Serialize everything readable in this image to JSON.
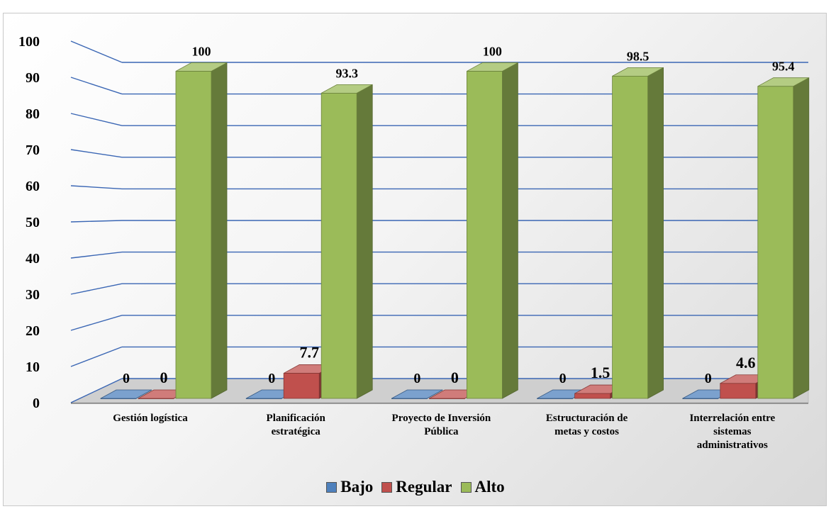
{
  "chart_data": {
    "type": "bar",
    "style": "3d-clustered-column",
    "categories": [
      "Gestión logística",
      "Planificación estratégica",
      "Proyecto de Inversión Pública",
      "Estructuración de metas y costos",
      "Interrelación entre sistemas administrativos"
    ],
    "series": [
      {
        "name": "Bajo",
        "values": [
          0,
          0,
          0,
          0,
          0
        ],
        "labels": [
          "0",
          "0",
          "0",
          "0",
          "0"
        ],
        "color": "#4f81bd"
      },
      {
        "name": "Regular",
        "values": [
          0,
          7.7,
          0,
          1.5,
          4.6
        ],
        "labels": [
          "0",
          "7.7",
          "0",
          "1.5",
          "4.6"
        ],
        "color": "#c0504d"
      },
      {
        "name": "Alto",
        "values": [
          100,
          93.3,
          100,
          98.5,
          95.4
        ],
        "labels": [
          "100",
          "93.3",
          "100",
          "98.5",
          "95.4"
        ],
        "color": "#9bbb59"
      }
    ],
    "ylim": [
      0,
      100
    ],
    "yticks": [
      "0",
      "10",
      "20",
      "30",
      "40",
      "50",
      "60",
      "70",
      "80",
      "90",
      "100"
    ],
    "grid": true,
    "legend_position": "bottom"
  },
  "legend": {
    "items": [
      {
        "label": "Bajo",
        "color": "#4f81bd"
      },
      {
        "label": "Regular",
        "color": "#c0504d"
      },
      {
        "label": "Alto",
        "color": "#9bbb59"
      }
    ]
  }
}
